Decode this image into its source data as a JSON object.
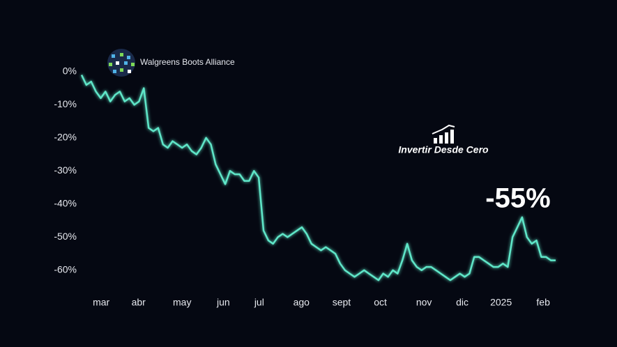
{
  "chart_data": {
    "type": "line",
    "logo_text": "Walgreens Boots Alliance",
    "watermark": "Invertir Desde Cero",
    "annotation": "-55%",
    "x": [
      0,
      1,
      2,
      3,
      4,
      5,
      6,
      7,
      8,
      9,
      10,
      11,
      12,
      13,
      14,
      15,
      16,
      17,
      18,
      19,
      20,
      21,
      22,
      23,
      24,
      25,
      26,
      27,
      28,
      29,
      30,
      31,
      32,
      33,
      34,
      35,
      36,
      37,
      38,
      39,
      40,
      41,
      42,
      43,
      44,
      45,
      46,
      47,
      48,
      49,
      50,
      51,
      52,
      53,
      54,
      55,
      56,
      57,
      58,
      59,
      60,
      61,
      62,
      63,
      64,
      65,
      66,
      67,
      68,
      69,
      70,
      71,
      72,
      73,
      74,
      75,
      76,
      77,
      78,
      79,
      80,
      81,
      82,
      83,
      84,
      85,
      86,
      87,
      88,
      89,
      90,
      91,
      92,
      93,
      94,
      95,
      96,
      97,
      98,
      99
    ],
    "series": [
      {
        "color": "#5ee6c8",
        "values": [
          -1,
          -4,
          -3,
          -6,
          -8,
          -6,
          -9,
          -7,
          -6,
          -9,
          -8,
          -10,
          -9,
          -5,
          -17,
          -18,
          -17,
          -22,
          -23,
          -21,
          -22,
          -23,
          -22,
          -24,
          -25,
          -23,
          -20,
          -22,
          -28,
          -31,
          -34,
          -30,
          -31,
          -31,
          -33,
          -33,
          -30,
          -32,
          -48,
          -51,
          -52,
          -50,
          -49,
          -50,
          -49,
          -48,
          -47,
          -49,
          -52,
          -53,
          -54,
          -53,
          -54,
          -55,
          -58,
          -60,
          -61,
          -62,
          -61,
          -60,
          -61,
          -62,
          -63,
          -61,
          -62,
          -60,
          -61,
          -57,
          -52,
          -57,
          -59,
          -60,
          -59,
          -59,
          -60,
          -61,
          -62,
          -63,
          -62,
          -61,
          -62,
          -61,
          -56,
          -56,
          -57,
          -58,
          -59,
          -59,
          -58,
          -59,
          -50,
          -47,
          -44,
          -50,
          -52,
          -51,
          -56,
          -56,
          -57,
          -57
        ]
      }
    ],
    "xlim": [
      0,
      99
    ],
    "xticks": [
      {
        "value": 4.1,
        "label": "mar"
      },
      {
        "value": 11.9,
        "label": "abr"
      },
      {
        "value": 21,
        "label": "may"
      },
      {
        "value": 29.6,
        "label": "jun"
      },
      {
        "value": 37.1,
        "label": "jul"
      },
      {
        "value": 45.9,
        "label": "ago"
      },
      {
        "value": 54.3,
        "label": "sept"
      },
      {
        "value": 62.4,
        "label": "oct"
      },
      {
        "value": 71.5,
        "label": "nov"
      },
      {
        "value": 79.5,
        "label": "dic"
      },
      {
        "value": 87.6,
        "label": "2025"
      },
      {
        "value": 96.4,
        "label": "feb"
      }
    ],
    "ylim": [
      -67.2,
      6.5
    ],
    "yticks": [
      {
        "value": 0,
        "label": "0%"
      },
      {
        "value": -10,
        "label": "-10%"
      },
      {
        "value": -20,
        "label": "-20%"
      },
      {
        "value": -30,
        "label": "-30%"
      },
      {
        "value": -40,
        "label": "-40%"
      },
      {
        "value": -50,
        "label": "-50%"
      },
      {
        "value": -60,
        "label": "-60%"
      }
    ]
  }
}
